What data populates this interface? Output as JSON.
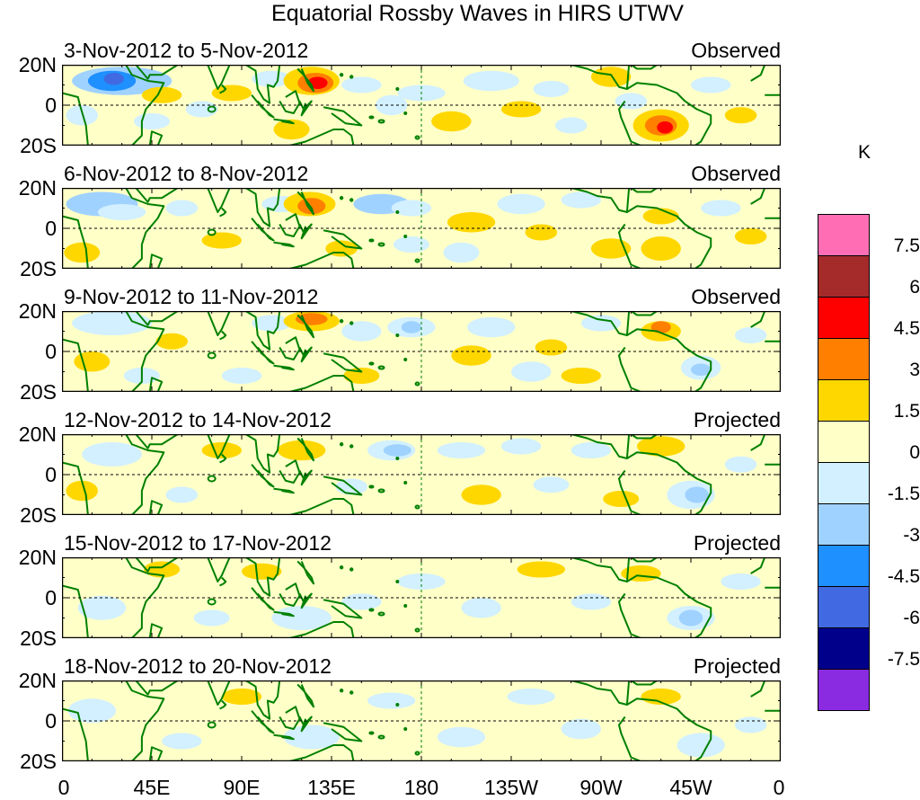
{
  "title": "Equatorial Rossby Waves in HIRS UTWV",
  "unit": "K",
  "lat_labels": [
    "20N",
    "0",
    "20S"
  ],
  "lon_labels": [
    "0",
    "45E",
    "90E",
    "135E",
    "180",
    "135W",
    "90W",
    "45W",
    "0"
  ],
  "panels": [
    {
      "date": "3-Nov-2012 to 5-Nov-2012",
      "type": "Observed"
    },
    {
      "date": "6-Nov-2012 to 8-Nov-2012",
      "type": "Observed"
    },
    {
      "date": "9-Nov-2012 to 11-Nov-2012",
      "type": "Observed"
    },
    {
      "date": "12-Nov-2012 to 14-Nov-2012",
      "type": "Projected"
    },
    {
      "date": "15-Nov-2012 to 17-Nov-2012",
      "type": "Projected"
    },
    {
      "date": "18-Nov-2012 to 20-Nov-2012",
      "type": "Projected"
    }
  ],
  "colorbar": {
    "labels": [
      "7.5",
      "6",
      "4.5",
      "3",
      "1.5",
      "0",
      "-1.5",
      "-3",
      "-4.5",
      "-6",
      "-7.5"
    ],
    "colors": [
      "#ff6eb4",
      "#a52a2a",
      "#ff0000",
      "#ff7f00",
      "#ffd700",
      "#ffffc8",
      "#d2f0ff",
      "#a0d2ff",
      "#1e90ff",
      "#4169e1",
      "#00008b",
      "#8a2be2"
    ]
  },
  "colors": {
    "coast": "#008000",
    "land_fill": "#ffffff",
    "grid": "#008000"
  }
}
